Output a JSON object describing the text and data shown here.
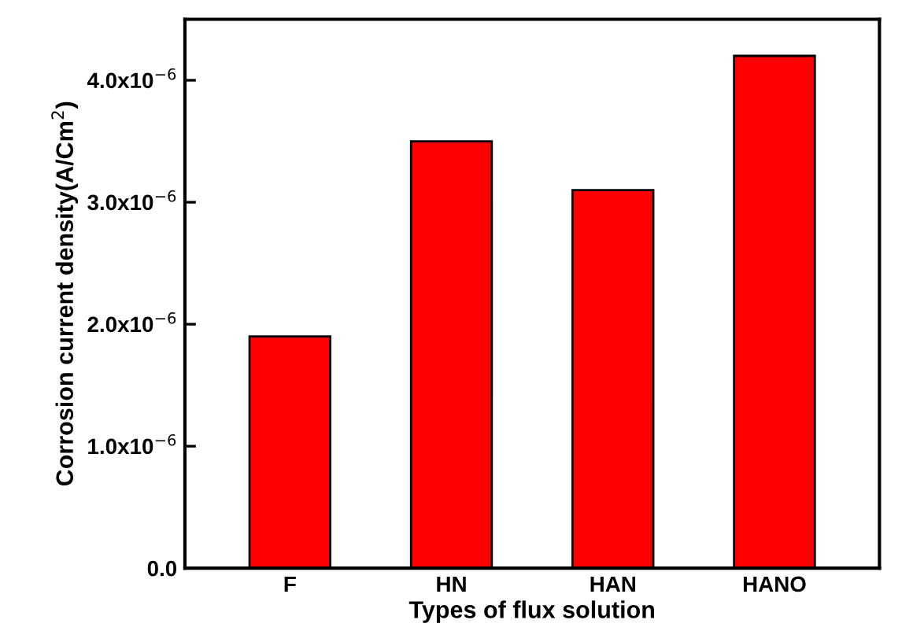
{
  "chart_data": {
    "type": "bar",
    "xlabel": "Types of flux solution",
    "ylabel": "Corrosion current density(A/Cm$^{2}$)",
    "categories": [
      "F",
      "HN",
      "HAN",
      "HANO"
    ],
    "series": [
      {
        "color": "#ff0000",
        "values": [
          1.9e-06,
          3.5e-06,
          3.1e-06,
          4.2e-06
        ]
      }
    ],
    "ylim": [
      0,
      4.5e-06
    ],
    "yticks": [
      {
        "value": 0,
        "label": "0.0"
      },
      {
        "value": 1e-06,
        "label": "1.0x10$^{−6}$"
      },
      {
        "value": 2e-06,
        "label": "2.0x10$^{−6}$"
      },
      {
        "value": 3e-06,
        "label": "3.0x10$^{−6}$"
      },
      {
        "value": 4e-06,
        "label": "4.0x10$^{−6}$"
      }
    ],
    "grid": false,
    "legend": false
  }
}
